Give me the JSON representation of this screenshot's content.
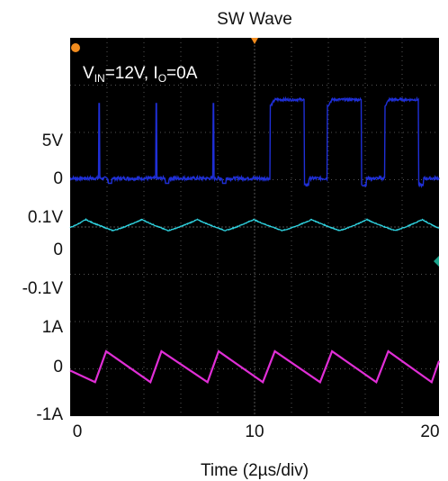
{
  "chart_data": {
    "type": "line",
    "title": "SW Wave",
    "annotation": {
      "vin_prefix": "V",
      "vin_sub": "IN",
      "vin_rest": "=12V, ",
      "io_prefix": "I",
      "io_sub": "O",
      "io_rest": "=0A"
    },
    "xlabel": "Time (2µs/div)",
    "xlim": [
      0,
      20
    ],
    "x_ticks": [
      "0",
      "10",
      "20"
    ],
    "grid": true,
    "background": "#000000",
    "panels": [
      {
        "name": "sw",
        "tick_labels": [
          "5V",
          "0"
        ],
        "ylim": [
          -2,
          11
        ],
        "color": "#1f2fd6",
        "period": 3.1,
        "phase": 1.55,
        "low": 0,
        "high": 9.5,
        "note": "spikes only on left half; full pulses right half"
      },
      {
        "name": "ripple",
        "tick_labels": [
          "0.1V",
          "0",
          "-0.1V"
        ],
        "ylim": [
          -0.13,
          0.13
        ],
        "color": "#2fd3e0",
        "peak": 0.09,
        "trough": -0.085
      },
      {
        "name": "inductor-current",
        "tick_labels": [
          "1A",
          "0",
          "-1A"
        ],
        "ylim": [
          -1,
          1
        ],
        "color": "#e02ed6",
        "peak": 0.35,
        "trough": -0.45
      }
    ]
  },
  "colors": {
    "grid": "#555555",
    "trigger_marker": "#f28c1e",
    "level_marker": "#1aa38b"
  }
}
